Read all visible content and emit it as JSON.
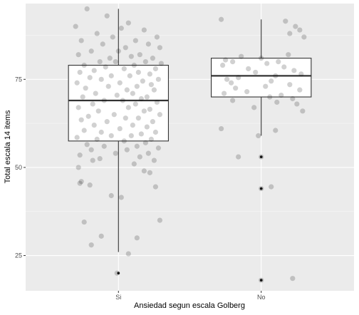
{
  "chart_data": {
    "type": "boxplot",
    "title": "",
    "xlabel": "Ansiedad segun escala Golberg",
    "ylabel": "Total escala 14 items",
    "categories": [
      "Si",
      "No"
    ],
    "ylim": [
      15,
      96.5
    ],
    "yticks": [
      25,
      50,
      75
    ],
    "grid": true,
    "legend": "none",
    "colors": {
      "panel_background": "#ebebeb",
      "grid_major": "#ffffff",
      "box_fill": "#ffffff",
      "box_line": "#333333",
      "jitter_point": "#000000",
      "outlier": "#1a1a1a"
    },
    "boxes": [
      {
        "category": "Si",
        "whisker_low": 26,
        "q1": 57.5,
        "median": 69,
        "q3": 79,
        "whisker_high": 95,
        "outliers": [
          20
        ]
      },
      {
        "category": "No",
        "whisker_low": 59,
        "q1": 70,
        "median": 76,
        "q3": 81,
        "whisker_high": 92,
        "outliers": [
          53,
          44,
          18
        ]
      }
    ],
    "points": [
      {
        "category": "Si",
        "values": [
          95,
          93,
          91,
          90,
          89.5,
          89,
          88,
          87,
          87,
          86,
          86,
          85,
          85,
          84,
          84,
          83,
          83,
          82,
          82,
          81.5,
          81,
          81,
          80,
          80,
          80,
          79.5,
          79,
          79,
          78.5,
          78,
          78,
          77.5,
          77,
          77,
          76.5,
          76,
          76,
          75.5,
          75,
          75,
          74.5,
          74,
          74,
          73.5,
          73,
          73,
          72.5,
          72,
          72,
          71,
          71,
          70.5,
          70,
          70,
          69.5,
          69,
          69,
          68.5,
          68,
          68,
          67,
          67,
          66.5,
          66,
          66,
          65,
          65,
          64.5,
          64,
          64,
          63.5,
          63,
          63,
          62,
          62,
          61.5,
          61,
          60.5,
          60,
          60,
          59.5,
          59,
          59,
          58.5,
          58,
          58,
          57.5,
          57,
          56.5,
          56,
          56,
          55.5,
          55,
          55,
          54,
          54,
          53.5,
          53,
          52.5,
          52,
          52,
          51,
          50,
          49,
          48.5,
          46,
          45.5,
          45,
          44.5,
          42,
          41.5,
          35,
          34.5,
          30.5,
          30,
          28,
          25.5,
          20
        ],
        "jitter": [
          -0.22,
          -0.08,
          0.07,
          -0.3,
          0.02,
          0.18,
          -0.15,
          0.27,
          -0.04,
          0.12,
          -0.26,
          0.21,
          -0.11,
          0.05,
          0.29,
          -0.19,
          0.0,
          0.15,
          -0.28,
          0.09,
          -0.06,
          0.24,
          -0.13,
          0.19,
          -0.02,
          0.3,
          -0.24,
          0.11,
          -0.09,
          0.26,
          0.04,
          -0.17,
          0.14,
          -0.27,
          0.22,
          -0.05,
          0.08,
          -0.2,
          0.28,
          -0.12,
          0.17,
          -0.29,
          0.01,
          0.23,
          -0.07,
          0.13,
          -0.23,
          0.06,
          0.25,
          -0.16,
          0.1,
          -0.01,
          0.2,
          -0.25,
          0.16,
          -0.1,
          0.03,
          0.27,
          -0.18,
          0.12,
          -0.28,
          0.07,
          0.22,
          -0.14,
          0.18,
          -0.03,
          0.29,
          -0.21,
          0.05,
          0.14,
          -0.26,
          0.24,
          -0.08,
          0.1,
          -0.17,
          0.2,
          0.01,
          -0.24,
          0.26,
          -0.12,
          0.16,
          -0.05,
          0.09,
          -0.29,
          0.23,
          -0.15,
          0.04,
          0.19,
          -0.22,
          0.13,
          -0.1,
          0.28,
          -0.19,
          0.06,
          -0.02,
          0.21,
          -0.27,
          0.15,
          -0.13,
          0.25,
          -0.18,
          0.11,
          -0.28,
          0.18,
          0.22,
          -0.26,
          -0.27,
          -0.2,
          0.26,
          -0.05,
          0.02,
          0.29,
          -0.24,
          -0.12,
          0.13,
          -0.19,
          0.07,
          -0.01
        ],
        "opacity": 0.18
      },
      {
        "category": "No",
        "values": [
          92,
          91.5,
          90,
          89,
          88,
          87,
          82,
          81.5,
          81,
          80.5,
          80,
          80,
          79.5,
          79,
          78.5,
          78,
          77.5,
          77,
          76.5,
          76,
          75.5,
          75,
          74.5,
          74,
          73.5,
          73,
          72.5,
          72,
          71.5,
          71,
          70.5,
          70,
          69.5,
          69,
          68.5,
          68,
          67,
          66,
          61,
          60.5,
          59,
          53,
          53,
          44.5,
          44,
          18.5,
          18
        ],
        "jitter": [
          -0.28,
          0.17,
          0.24,
          0.27,
          0.2,
          0.3,
          0.19,
          -0.14,
          0.0,
          -0.25,
          0.12,
          -0.2,
          0.04,
          -0.27,
          0.16,
          -0.09,
          0.23,
          -0.04,
          0.28,
          0.1,
          -0.16,
          -0.24,
          0.07,
          -0.21,
          0.2,
          0.03,
          -0.18,
          0.27,
          -0.1,
          -0.26,
          0.14,
          0.06,
          0.22,
          -0.2,
          0.11,
          0.25,
          -0.05,
          0.29,
          -0.28,
          0.1,
          -0.02,
          -0.16,
          0.0,
          0.07,
          0.0,
          0.22,
          0.0
        ],
        "opacity": 0.18
      }
    ]
  }
}
